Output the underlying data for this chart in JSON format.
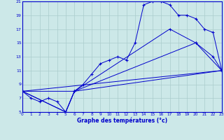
{
  "xlabel": "Graphe des températures (°c)",
  "background_color": "#cce8e8",
  "grid_color": "#aacccc",
  "line_color": "#0000cc",
  "x_min": 0,
  "x_max": 23,
  "y_min": 5,
  "y_max": 21,
  "curve_main_x": [
    0,
    1,
    2,
    3,
    4,
    5,
    6,
    7,
    8,
    9,
    10,
    11,
    12,
    13,
    14,
    15,
    16,
    17,
    18,
    19,
    20,
    21,
    22,
    23
  ],
  "curve_main_y": [
    8,
    7,
    6.5,
    7,
    6.5,
    5,
    8,
    9,
    10.5,
    12,
    12.5,
    13,
    12.5,
    15,
    20.5,
    21,
    21,
    20.5,
    19,
    19,
    18.5,
    17,
    16.5,
    11
  ],
  "line1_x": [
    0,
    23
  ],
  "line1_y": [
    8,
    11
  ],
  "line2_x": [
    0,
    5,
    6,
    23
  ],
  "line2_y": [
    8,
    5,
    8,
    11
  ],
  "line3_x": [
    0,
    5,
    6,
    20,
    23
  ],
  "line3_y": [
    8,
    5,
    8,
    15,
    11
  ],
  "line4_x": [
    0,
    6,
    17,
    20,
    22,
    23
  ],
  "line4_y": [
    8,
    8,
    17,
    15,
    13,
    11
  ]
}
